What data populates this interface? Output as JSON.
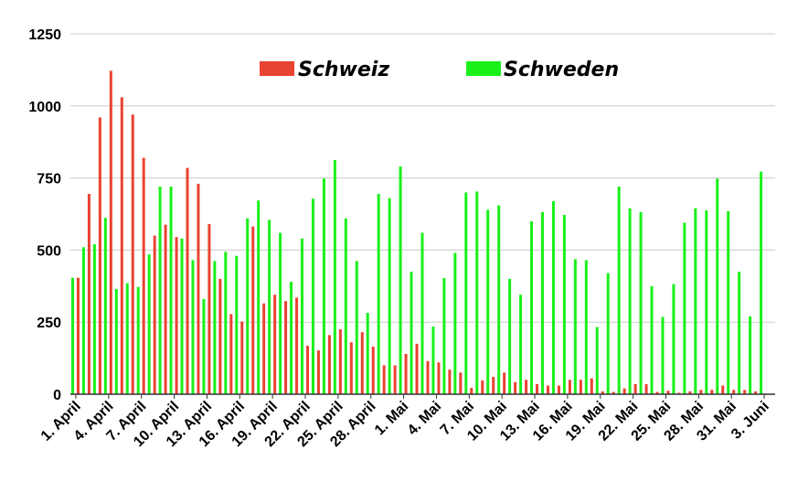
{
  "chart_data": {
    "type": "bar",
    "title": "",
    "xlabel": "",
    "ylabel": "",
    "ylim": [
      0,
      1250
    ],
    "yticks": [
      0,
      250,
      500,
      750,
      1000,
      1250
    ],
    "grid": true,
    "legend_position": "top-center",
    "x_tick_labels": [
      "1. April",
      "4. April",
      "7. April",
      "10. April",
      "13. April",
      "16. April",
      "19. April",
      "22. April",
      "25. April",
      "28. April",
      "1. Mai",
      "4. Mai",
      "7. Mai",
      "10. Mai",
      "13. Mai",
      "16. Mai",
      "19. Mai",
      "22. Mai",
      "25. Mai",
      "28. Mai",
      "31. Mai",
      "3. Juni"
    ],
    "categories": [
      "1. April",
      "2. April",
      "3. April",
      "4. April",
      "5. April",
      "6. April",
      "7. April",
      "8. April",
      "9. April",
      "10. April",
      "11. April",
      "12. April",
      "13. April",
      "14. April",
      "15. April",
      "16. April",
      "17. April",
      "18. April",
      "19. April",
      "20. April",
      "21. April",
      "22. April",
      "23. April",
      "24. April",
      "25. April",
      "26. April",
      "27. April",
      "28. April",
      "29. April",
      "30. April",
      "1. Mai",
      "2. Mai",
      "3. Mai",
      "4. Mai",
      "5. Mai",
      "6. Mai",
      "7. Mai",
      "8. Mai",
      "9. Mai",
      "10. Mai",
      "11. Mai",
      "12. Mai",
      "13. Mai",
      "14. Mai",
      "15. Mai",
      "16. Mai",
      "17. Mai",
      "18. Mai",
      "19. Mai",
      "20. Mai",
      "21. Mai",
      "22. Mai",
      "23. Mai",
      "24. Mai",
      "25. Mai",
      "26. Mai",
      "27. Mai",
      "28. Mai",
      "29. Mai",
      "30. Mai",
      "31. Mai",
      "1. Juni",
      "2. Juni",
      "3. Juni"
    ],
    "series": [
      {
        "name": "Schweiz",
        "color": "#e94332",
        "values": [
          404,
          695,
          960,
          1122,
          1030,
          970,
          820,
          550,
          588,
          545,
          785,
          730,
          590,
          400,
          278,
          252,
          582,
          315,
          345,
          323,
          335,
          168,
          152,
          205,
          225,
          180,
          215,
          165,
          100,
          100,
          140,
          175,
          115,
          110,
          85,
          75,
          22,
          48,
          60,
          75,
          42,
          50,
          35,
          30,
          30,
          50,
          50,
          55,
          10,
          8,
          20,
          35,
          35,
          8,
          12,
          5,
          10,
          15,
          15,
          30,
          15,
          15,
          10,
          0
        ]
      },
      {
        "name": "Schweden",
        "color": "#19f01a",
        "values": [
          404,
          510,
          520,
          612,
          365,
          385,
          372,
          485,
          720,
          720,
          540,
          465,
          330,
          462,
          494,
          480,
          610,
          672,
          605,
          560,
          390,
          540,
          678,
          748,
          812,
          610,
          462,
          282,
          695,
          680,
          790,
          425,
          560,
          235,
          403,
          490,
          700,
          703,
          640,
          655,
          400,
          345,
          600,
          632,
          670,
          622,
          468,
          465,
          233,
          420,
          720,
          645,
          632,
          375,
          268,
          382,
          595,
          645,
          638,
          748,
          635,
          425,
          270,
          772
        ]
      }
    ]
  }
}
